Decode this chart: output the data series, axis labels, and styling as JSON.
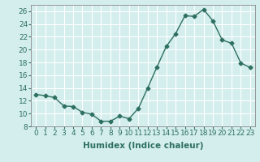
{
  "x": [
    0,
    1,
    2,
    3,
    4,
    5,
    6,
    7,
    8,
    9,
    10,
    11,
    12,
    13,
    14,
    15,
    16,
    17,
    18,
    19,
    20,
    21,
    22,
    23
  ],
  "y": [
    13.0,
    12.8,
    12.5,
    11.2,
    11.1,
    10.2,
    9.9,
    8.8,
    8.8,
    9.6,
    9.2,
    10.8,
    14.0,
    17.3,
    20.5,
    22.5,
    25.3,
    25.2,
    26.3,
    24.5,
    21.5,
    21.0,
    17.9,
    17.2
  ],
  "line_color": "#2e7060",
  "marker": "D",
  "marker_size": 2.5,
  "bg_color": "#d4eeee",
  "grid_color": "#c8dada",
  "xlabel": "Humidex (Indice chaleur)",
  "ylabel": "",
  "xlim": [
    -0.5,
    23.5
  ],
  "ylim": [
    8,
    27
  ],
  "yticks": [
    8,
    10,
    12,
    14,
    16,
    18,
    20,
    22,
    24,
    26
  ],
  "xticks": [
    0,
    1,
    2,
    3,
    4,
    5,
    6,
    7,
    8,
    9,
    10,
    11,
    12,
    13,
    14,
    15,
    16,
    17,
    18,
    19,
    20,
    21,
    22,
    23
  ],
  "xlabel_fontsize": 7.5,
  "tick_fontsize": 6.5,
  "line_width": 1.0
}
